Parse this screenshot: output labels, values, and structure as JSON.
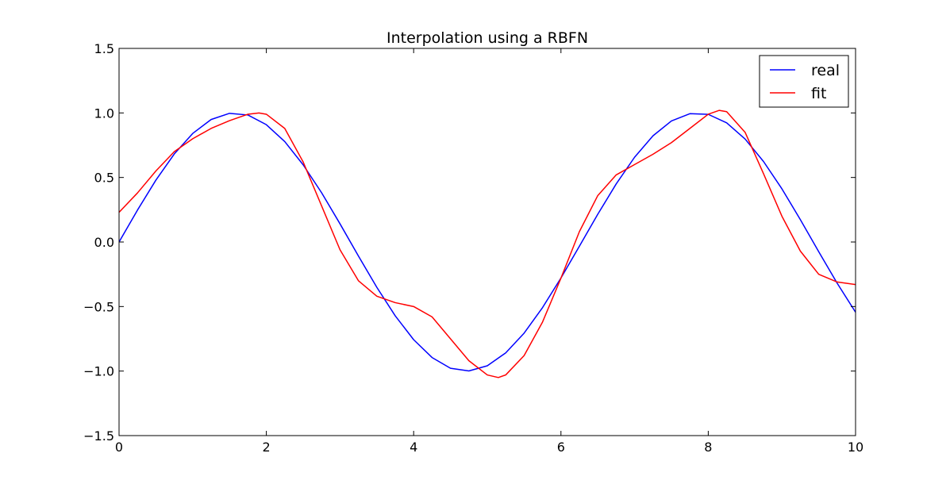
{
  "chart_data": {
    "type": "line",
    "title": "Interpolation using a RBFN",
    "xlabel": "",
    "ylabel": "",
    "xlim": [
      0,
      10
    ],
    "ylim": [
      -1.5,
      1.5
    ],
    "xticks": [
      0,
      2,
      4,
      6,
      8,
      10
    ],
    "xtick_labels": [
      "0",
      "2",
      "4",
      "6",
      "8",
      "10"
    ],
    "yticks": [
      -1.5,
      -1.0,
      -0.5,
      0.0,
      0.5,
      1.0,
      1.5
    ],
    "ytick_labels": [
      "−1.5",
      "−1.0",
      "−0.5",
      "0.0",
      "0.5",
      "1.0",
      "1.5"
    ],
    "grid": false,
    "legend_position": "top-right",
    "series": [
      {
        "name": "real",
        "color": "#0000ff",
        "x": [
          0,
          0.25,
          0.5,
          0.75,
          1.0,
          1.25,
          1.5,
          1.75,
          2.0,
          2.25,
          2.5,
          2.75,
          3.0,
          3.25,
          3.5,
          3.75,
          4.0,
          4.25,
          4.5,
          4.75,
          5.0,
          5.25,
          5.5,
          5.75,
          6.0,
          6.25,
          6.5,
          6.75,
          7.0,
          7.25,
          7.5,
          7.75,
          8.0,
          8.25,
          8.5,
          8.75,
          9.0,
          9.25,
          9.5,
          9.75,
          10.0
        ],
        "y": [
          0.0,
          0.247,
          0.479,
          0.682,
          0.841,
          0.949,
          0.997,
          0.984,
          0.909,
          0.778,
          0.598,
          0.382,
          0.141,
          -0.108,
          -0.351,
          -0.572,
          -0.757,
          -0.895,
          -0.978,
          -0.999,
          -0.959,
          -0.859,
          -0.706,
          -0.508,
          -0.279,
          -0.033,
          0.215,
          0.45,
          0.657,
          0.823,
          0.938,
          0.994,
          0.989,
          0.923,
          0.798,
          0.624,
          0.412,
          0.174,
          -0.075,
          -0.319,
          -0.544
        ]
      },
      {
        "name": "fit",
        "color": "#ff0000",
        "x": [
          0,
          0.25,
          0.5,
          0.75,
          1.0,
          1.25,
          1.5,
          1.75,
          1.9,
          2.0,
          2.25,
          2.5,
          2.75,
          3.0,
          3.25,
          3.5,
          3.75,
          4.0,
          4.25,
          4.5,
          4.75,
          5.0,
          5.15,
          5.25,
          5.5,
          5.75,
          6.0,
          6.25,
          6.5,
          6.75,
          7.0,
          7.25,
          7.5,
          7.75,
          8.0,
          8.15,
          8.25,
          8.5,
          8.75,
          9.0,
          9.25,
          9.5,
          9.75,
          10.0
        ],
        "y": [
          0.23,
          0.38,
          0.55,
          0.7,
          0.8,
          0.88,
          0.94,
          0.99,
          1.0,
          0.99,
          0.88,
          0.62,
          0.28,
          -0.06,
          -0.3,
          -0.42,
          -0.47,
          -0.5,
          -0.58,
          -0.75,
          -0.92,
          -1.03,
          -1.05,
          -1.03,
          -0.88,
          -0.62,
          -0.28,
          0.08,
          0.36,
          0.52,
          0.6,
          0.68,
          0.77,
          0.88,
          0.99,
          1.02,
          1.01,
          0.85,
          0.53,
          0.2,
          -0.07,
          -0.25,
          -0.31,
          -0.33
        ]
      }
    ]
  }
}
